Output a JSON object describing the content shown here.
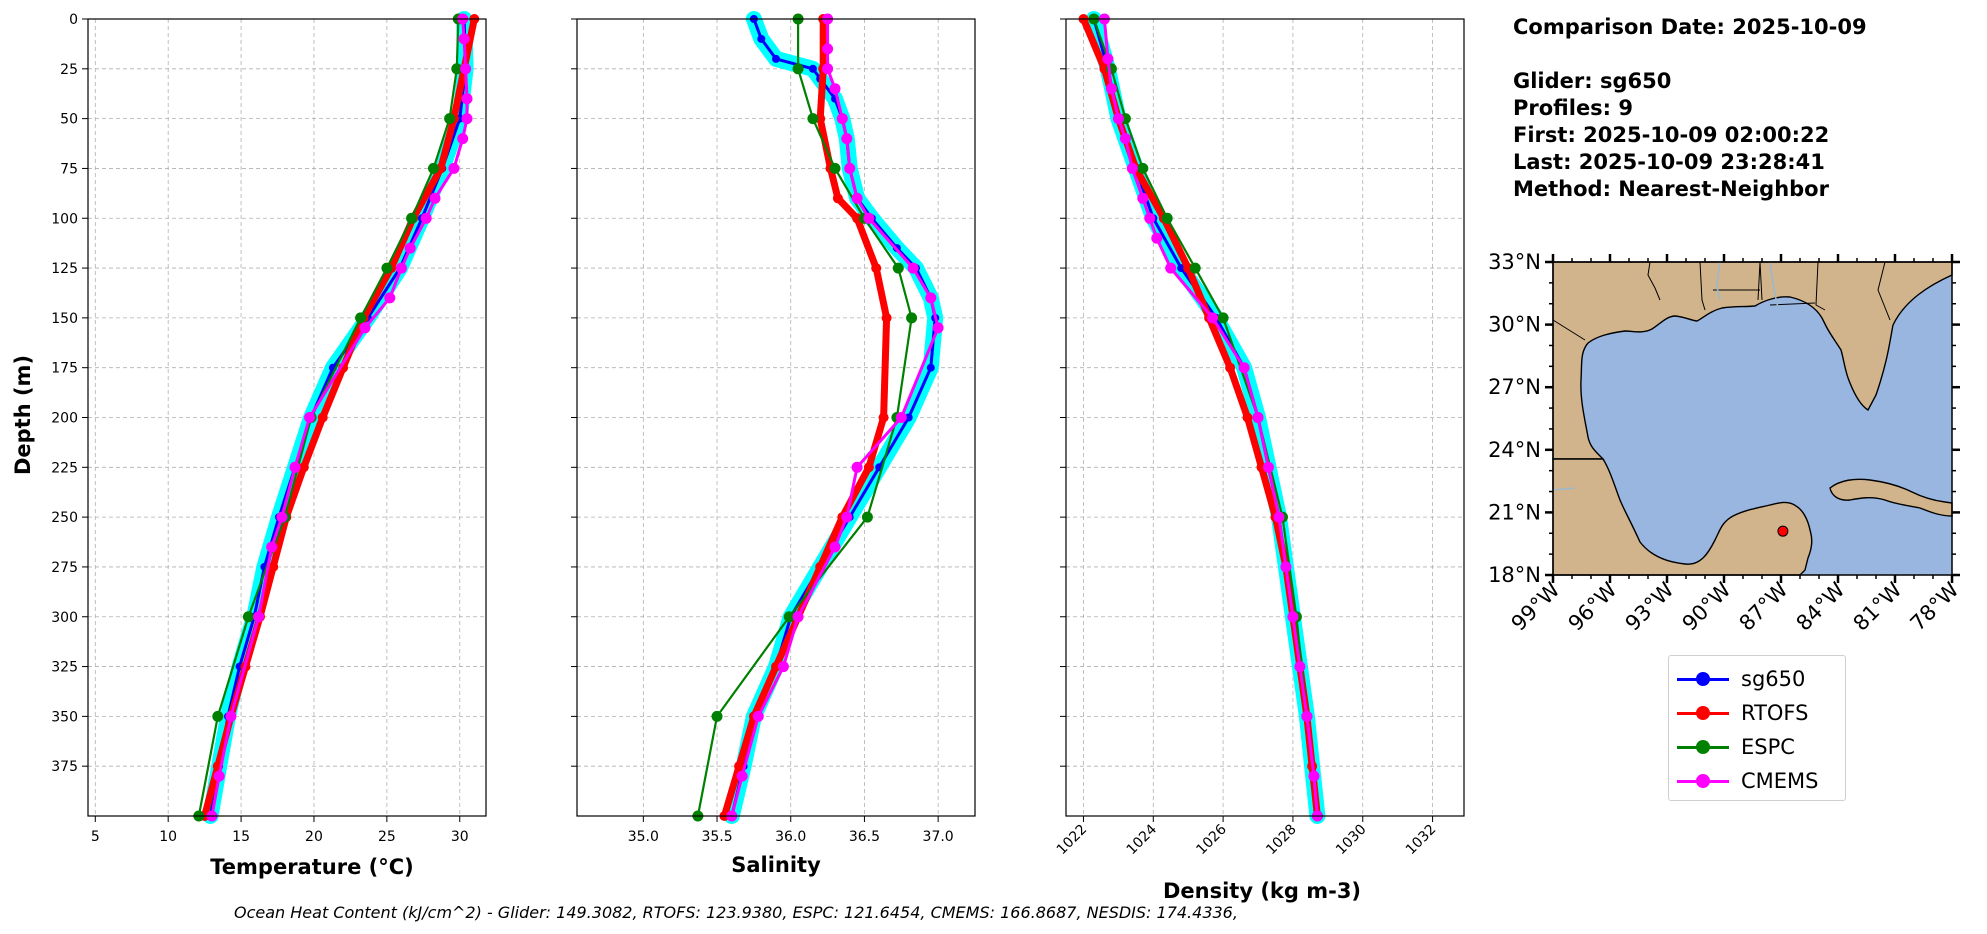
{
  "info": {
    "comparison_date": "Comparison Date: 2025-10-09",
    "glider": "Glider: sg650",
    "profiles": "Profiles: 9",
    "first": "First: 2025-10-09 02:00:22",
    "last": "Last: 2025-10-09 23:28:41",
    "method": "Method: Nearest-Neighbor"
  },
  "legend": [
    {
      "label": "sg650",
      "color": "#0000ff"
    },
    {
      "label": "RTOFS",
      "color": "#ff0000"
    },
    {
      "label": "ESPC",
      "color": "#008000"
    },
    {
      "label": "CMEMS",
      "color": "#ff00ff"
    }
  ],
  "footer": "Ocean Heat Content (kJ/cm^2) - Glider: 149.3082,  RTOFS: 123.9380,  ESPC: 121.6454,  CMEMS: 166.8687,  NESDIS: 174.4336,",
  "colors": {
    "glider": "#0000ff",
    "glider_spread": "#00ffff",
    "rtofs": "#ff0000",
    "espc": "#008000",
    "cmems": "#ff00ff",
    "land": "#d2b48c",
    "water": "#99b6e0"
  },
  "chart_data": [
    {
      "type": "line",
      "xlabel": "Temperature (°C)",
      "ylabel": "Depth (m)",
      "xlim": [
        4.5,
        31.8
      ],
      "ylim": [
        400,
        0
      ],
      "xticks": [
        5,
        10,
        15,
        20,
        25,
        30
      ],
      "yticks": [
        0,
        25,
        50,
        75,
        100,
        125,
        150,
        175,
        200,
        225,
        250,
        275,
        300,
        325,
        350,
        375
      ],
      "series": [
        {
          "name": "sg650",
          "depth": [
            0,
            25,
            50,
            75,
            100,
            125,
            150,
            175,
            200,
            225,
            250,
            275,
            300,
            325,
            350,
            375,
            400
          ],
          "values": [
            30.3,
            30.4,
            30.0,
            28.8,
            27.4,
            25.9,
            23.7,
            21.3,
            19.8,
            18.7,
            17.6,
            16.6,
            15.9,
            14.9,
            14.1,
            13.5,
            12.9
          ]
        },
        {
          "name": "RTOFS",
          "depth": [
            0,
            25,
            50,
            75,
            100,
            125,
            150,
            175,
            200,
            225,
            250,
            275,
            300,
            325,
            350,
            375,
            400
          ],
          "values": [
            31.0,
            30.3,
            29.6,
            28.7,
            26.8,
            25.3,
            23.4,
            22.0,
            20.6,
            19.3,
            18.1,
            17.2,
            16.3,
            15.3,
            14.3,
            13.4,
            12.5
          ]
        },
        {
          "name": "ESPC",
          "depth": [
            0,
            25,
            50,
            75,
            100,
            125,
            150,
            200,
            250,
            300,
            350,
            400
          ],
          "values": [
            29.9,
            29.8,
            29.3,
            28.2,
            26.7,
            25.0,
            23.2,
            19.8,
            18.0,
            15.5,
            13.4,
            12.1
          ]
        },
        {
          "name": "CMEMS",
          "depth": [
            0,
            10,
            25,
            40,
            50,
            60,
            75,
            90,
            100,
            115,
            125,
            140,
            155,
            200,
            225,
            250,
            265,
            300,
            350,
            380,
            400
          ],
          "values": [
            30.2,
            30.3,
            30.4,
            30.5,
            30.5,
            30.2,
            29.6,
            28.3,
            27.7,
            26.6,
            26.0,
            25.2,
            23.5,
            19.7,
            18.7,
            17.8,
            17.1,
            16.2,
            14.3,
            13.5,
            13.0
          ]
        }
      ]
    },
    {
      "type": "line",
      "xlabel": "Salinity",
      "ylabel": "",
      "xlim": [
        34.55,
        37.25
      ],
      "ylim": [
        400,
        0
      ],
      "xticks": [
        35.0,
        35.5,
        36.0,
        36.5,
        37.0
      ],
      "yticks": [
        0,
        25,
        50,
        75,
        100,
        125,
        150,
        175,
        200,
        225,
        250,
        275,
        300,
        325,
        350,
        375
      ],
      "series": [
        {
          "name": "sg650",
          "depth": [
            0,
            10,
            20,
            25,
            30,
            40,
            50,
            60,
            75,
            90,
            100,
            115,
            125,
            140,
            150,
            175,
            200,
            225,
            250,
            275,
            300,
            325,
            350,
            375,
            400
          ],
          "values": [
            35.75,
            35.8,
            35.9,
            36.15,
            36.2,
            36.3,
            36.35,
            36.38,
            36.4,
            36.45,
            36.55,
            36.72,
            36.85,
            36.95,
            36.98,
            36.95,
            36.8,
            36.6,
            36.4,
            36.2,
            36.0,
            35.9,
            35.75,
            35.68,
            35.6
          ]
        },
        {
          "name": "RTOFS",
          "depth": [
            0,
            25,
            50,
            75,
            90,
            100,
            125,
            150,
            200,
            225,
            250,
            275,
            300,
            325,
            350,
            375,
            400
          ],
          "values": [
            36.22,
            36.22,
            36.2,
            36.27,
            36.32,
            36.45,
            36.58,
            36.65,
            36.63,
            36.53,
            36.35,
            36.2,
            36.05,
            35.9,
            35.75,
            35.65,
            35.55
          ]
        },
        {
          "name": "ESPC",
          "depth": [
            0,
            25,
            50,
            75,
            100,
            125,
            150,
            200,
            250,
            300,
            350,
            400
          ],
          "values": [
            36.05,
            36.05,
            36.15,
            36.3,
            36.5,
            36.73,
            36.82,
            36.72,
            36.52,
            35.99,
            35.5,
            35.37
          ]
        },
        {
          "name": "CMEMS",
          "depth": [
            0,
            15,
            25,
            35,
            50,
            60,
            75,
            90,
            100,
            125,
            140,
            155,
            200,
            225,
            250,
            265,
            300,
            325,
            350,
            380,
            400
          ],
          "values": [
            36.25,
            36.25,
            36.25,
            36.3,
            36.35,
            36.38,
            36.4,
            36.45,
            36.53,
            36.83,
            36.95,
            37.0,
            36.75,
            36.45,
            36.38,
            36.3,
            36.05,
            35.95,
            35.78,
            35.67,
            35.6
          ]
        }
      ]
    },
    {
      "type": "line",
      "xlabel": "Density (kg m-3)",
      "ylabel": "",
      "xlim": [
        1021.5,
        1032.9
      ],
      "ylim": [
        400,
        0
      ],
      "xticks": [
        1022,
        1024,
        1026,
        1028,
        1030,
        1032
      ],
      "yticks": [
        0,
        25,
        50,
        75,
        100,
        125,
        150,
        175,
        200,
        225,
        250,
        275,
        300,
        325,
        350,
        375
      ],
      "series": [
        {
          "name": "sg650",
          "depth": [
            0,
            25,
            50,
            75,
            100,
            125,
            150,
            175,
            200,
            225,
            250,
            275,
            300,
            325,
            350,
            375,
            400
          ],
          "values": [
            1022.3,
            1022.7,
            1023.0,
            1023.5,
            1024.0,
            1024.8,
            1025.8,
            1026.6,
            1027.0,
            1027.3,
            1027.6,
            1027.8,
            1028.0,
            1028.2,
            1028.4,
            1028.55,
            1028.7
          ]
        },
        {
          "name": "RTOFS",
          "depth": [
            0,
            25,
            50,
            75,
            100,
            125,
            150,
            175,
            200,
            225,
            250,
            275,
            300,
            325,
            350,
            375,
            400
          ],
          "values": [
            1022.0,
            1022.6,
            1023.0,
            1023.5,
            1024.3,
            1025.0,
            1025.6,
            1026.2,
            1026.7,
            1027.1,
            1027.5,
            1027.8,
            1028.0,
            1028.2,
            1028.4,
            1028.55,
            1028.7
          ]
        },
        {
          "name": "ESPC",
          "depth": [
            0,
            25,
            50,
            75,
            100,
            125,
            150,
            200,
            250,
            300,
            350,
            400
          ],
          "values": [
            1022.3,
            1022.8,
            1023.2,
            1023.7,
            1024.4,
            1025.2,
            1026.0,
            1027.0,
            1027.7,
            1028.1,
            1028.4,
            1028.7
          ]
        },
        {
          "name": "CMEMS",
          "depth": [
            0,
            20,
            35,
            50,
            60,
            75,
            90,
            100,
            110,
            125,
            150,
            175,
            200,
            225,
            250,
            275,
            300,
            325,
            350,
            380,
            400
          ],
          "values": [
            1022.6,
            1022.7,
            1022.8,
            1023.0,
            1023.2,
            1023.4,
            1023.7,
            1023.9,
            1024.1,
            1024.5,
            1025.7,
            1026.6,
            1027.0,
            1027.3,
            1027.6,
            1027.8,
            1028.0,
            1028.2,
            1028.4,
            1028.6,
            1028.7
          ]
        }
      ]
    },
    {
      "type": "map",
      "lat_ticks": [
        "33°N",
        "30°N",
        "27°N",
        "24°N",
        "21°N",
        "18°N"
      ],
      "lon_ticks": [
        "99°W",
        "96°W",
        "93°W",
        "90°W",
        "87°W",
        "84°W",
        "81°W",
        "78°W"
      ],
      "lat_range": [
        18,
        33
      ],
      "lon_range": [
        -99,
        -78
      ],
      "glider_position": {
        "lat": 20.1,
        "lon": -86.9
      }
    }
  ]
}
